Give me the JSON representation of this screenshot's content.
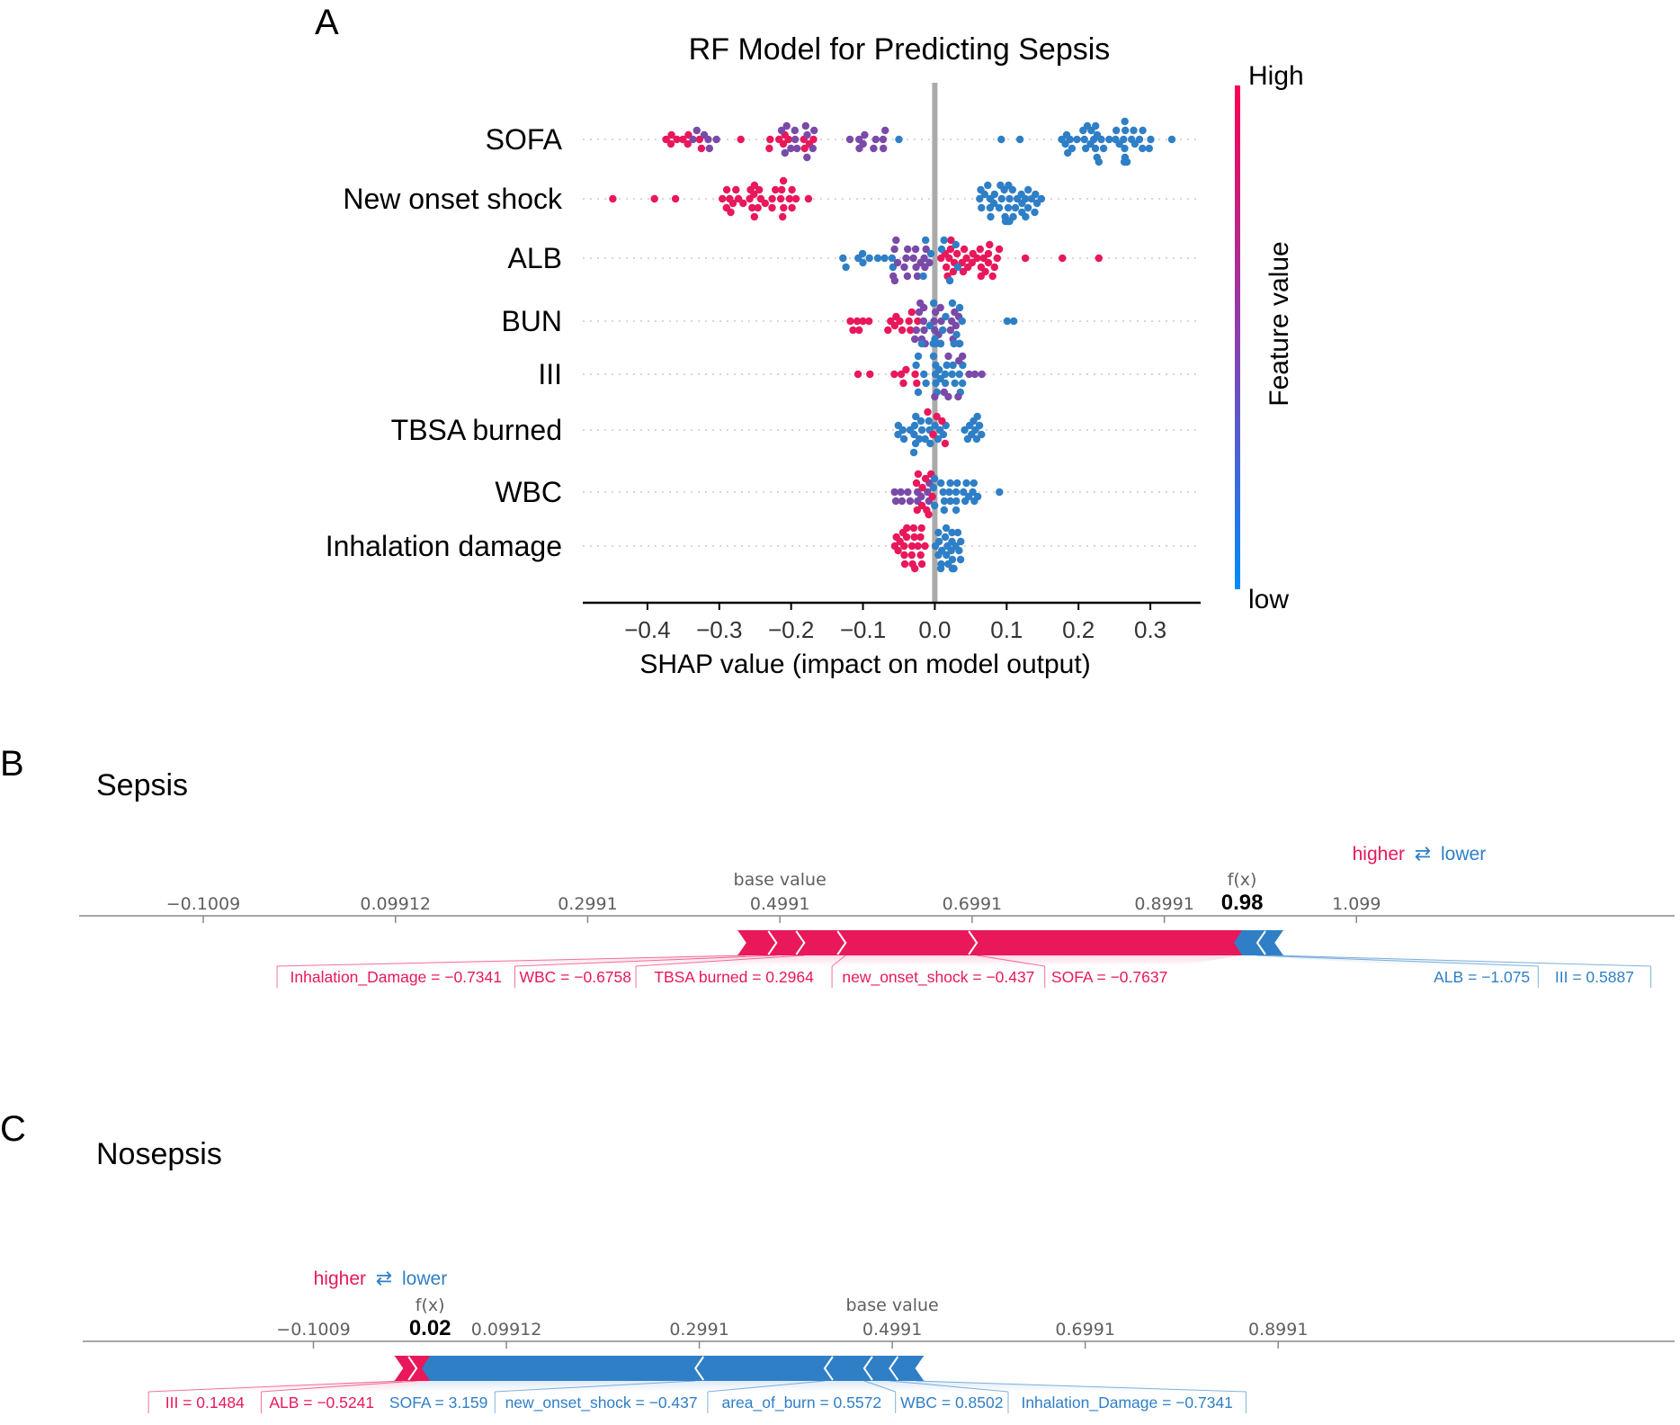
{
  "colors": {
    "red": "#e8185b",
    "blue": "#2f7fc6",
    "purple": "#7a4aa8",
    "axis": "#000000",
    "grey_zero": "#aaaaaa",
    "tick_grey": "#606060"
  },
  "chart_data": [
    {
      "panel": "A",
      "type": "scatter",
      "subtype": "shap-beeswarm",
      "title": "RF Model for Predicting Sepsis",
      "xlabel": "SHAP value (impact on model output)",
      "xlim": [
        -0.49,
        0.37
      ],
      "xticks": [
        {
          "v": -0.4,
          "label": "−0.4"
        },
        {
          "v": -0.3,
          "label": "−0.3"
        },
        {
          "v": -0.2,
          "label": "−0.2"
        },
        {
          "v": -0.1,
          "label": "−0.1"
        },
        {
          "v": 0.0,
          "label": "0.0"
        },
        {
          "v": 0.1,
          "label": "0.1"
        },
        {
          "v": 0.2,
          "label": "0.2"
        },
        {
          "v": 0.3,
          "label": "0.3"
        }
      ],
      "colorbar": {
        "label": "Feature value",
        "high": "High",
        "low": "low"
      },
      "features": [
        {
          "name": "SOFA",
          "groups": [
            {
              "c": "r",
              "range": [
                -0.38,
                -0.32
              ],
              "n": 9
            },
            {
              "c": "p",
              "range": [
                -0.34,
                -0.3
              ],
              "n": 6
            },
            {
              "c": "r",
              "range": [
                -0.27,
                -0.27
              ],
              "n": 1
            },
            {
              "c": "r",
              "range": [
                -0.24,
                -0.16
              ],
              "n": 10
            },
            {
              "c": "p",
              "range": [
                -0.22,
                -0.16
              ],
              "n": 12
            },
            {
              "c": "p",
              "range": [
                -0.12,
                -0.06
              ],
              "n": 10
            },
            {
              "c": "b",
              "range": [
                -0.05,
                -0.05
              ],
              "n": 1
            },
            {
              "c": "b",
              "range": [
                0.09,
                0.12
              ],
              "n": 2
            },
            {
              "c": "b",
              "range": [
                0.17,
                0.31
              ],
              "n": 42
            },
            {
              "c": "b",
              "range": [
                0.33,
                0.33
              ],
              "n": 1
            }
          ]
        },
        {
          "name": "New onset shock",
          "groups": [
            {
              "c": "r",
              "range": [
                -0.45,
                -0.35
              ],
              "n": 3
            },
            {
              "c": "r",
              "range": [
                -0.31,
                -0.17
              ],
              "n": 32
            },
            {
              "c": "b",
              "range": [
                0.06,
                0.15
              ],
              "n": 38
            }
          ]
        },
        {
          "name": "ALB",
          "groups": [
            {
              "c": "b",
              "range": [
                -0.14,
                -0.05
              ],
              "n": 10
            },
            {
              "c": "p",
              "range": [
                -0.07,
                0.0
              ],
              "n": 18
            },
            {
              "c": "r",
              "range": [
                0.0,
                0.1
              ],
              "n": 30
            },
            {
              "c": "r",
              "range": [
                0.12,
                0.24
              ],
              "n": 3
            },
            {
              "c": "b",
              "range": [
                -0.02,
                0.04
              ],
              "n": 8
            }
          ]
        },
        {
          "name": "BUN",
          "groups": [
            {
              "c": "r",
              "range": [
                -0.12,
                -0.09
              ],
              "n": 6
            },
            {
              "c": "r",
              "range": [
                -0.07,
                -0.02
              ],
              "n": 10
            },
            {
              "c": "p",
              "range": [
                -0.04,
                0.04
              ],
              "n": 22
            },
            {
              "c": "b",
              "range": [
                -0.02,
                0.05
              ],
              "n": 18
            },
            {
              "c": "b",
              "range": [
                0.1,
                0.11
              ],
              "n": 2
            }
          ]
        },
        {
          "name": "III",
          "groups": [
            {
              "c": "r",
              "range": [
                -0.11,
                -0.09
              ],
              "n": 2
            },
            {
              "c": "r",
              "range": [
                -0.06,
                -0.02
              ],
              "n": 6
            },
            {
              "c": "b",
              "range": [
                -0.03,
                0.05
              ],
              "n": 22
            },
            {
              "c": "p",
              "range": [
                0.0,
                0.07
              ],
              "n": 10
            }
          ]
        },
        {
          "name": "TBSA burned",
          "groups": [
            {
              "c": "b",
              "range": [
                -0.06,
                0.02
              ],
              "n": 22
            },
            {
              "c": "r",
              "range": [
                -0.01,
                0.02
              ],
              "n": 5
            },
            {
              "c": "b",
              "range": [
                0.04,
                0.07
              ],
              "n": 10
            }
          ]
        },
        {
          "name": "WBC",
          "groups": [
            {
              "c": "p",
              "range": [
                -0.06,
                0.0
              ],
              "n": 12
            },
            {
              "c": "r",
              "range": [
                -0.03,
                0.0
              ],
              "n": 10
            },
            {
              "c": "b",
              "range": [
                -0.01,
                0.07
              ],
              "n": 22
            },
            {
              "c": "b",
              "range": [
                0.09,
                0.09
              ],
              "n": 1
            }
          ]
        },
        {
          "name": "Inhalation damage",
          "groups": [
            {
              "c": "r",
              "range": [
                -0.06,
                -0.01
              ],
              "n": 22
            },
            {
              "c": "b",
              "range": [
                0.0,
                0.04
              ],
              "n": 24
            }
          ]
        }
      ]
    },
    {
      "panel": "B",
      "type": "force",
      "title": "Sepsis",
      "base_value": 0.4991,
      "base_label": "base value",
      "fx": 0.98,
      "fx_text": "0.98",
      "fx_label": "f(x)",
      "legend": {
        "higher": "higher",
        "arrows": "⇄",
        "lower": "lower"
      },
      "xlim": [
        -0.23,
        1.43
      ],
      "ticks": [
        {
          "v": -0.1009,
          "label": "−0.1009"
        },
        {
          "v": 0.09912,
          "label": "0.09912"
        },
        {
          "v": 0.2991,
          "label": "0.2991"
        },
        {
          "v": 0.4991,
          "label": "0.4991"
        },
        {
          "v": 0.6991,
          "label": "0.6991"
        },
        {
          "v": 0.8991,
          "label": "0.8991"
        },
        {
          "v": 1.099,
          "label": "1.099"
        }
      ],
      "positive": [
        {
          "label": "Inhalation_Damage = −0.7341",
          "value": 0.0325
        },
        {
          "label": "WBC = −0.6758",
          "value": 0.029
        },
        {
          "label": "TBSA burned   = 0.2964",
          "value": 0.043
        },
        {
          "label": "new_onset_shock = −0.437",
          "value": 0.1365
        },
        {
          "label": "SOFA = −0.7637",
          "value": 0.276
        }
      ],
      "negative": [
        {
          "label": "ALB = −1.075",
          "value": 0.0158
        },
        {
          "label": "III = 0.5887",
          "value": 0.0192
        }
      ]
    },
    {
      "panel": "C",
      "type": "force",
      "title": "Nosepsis",
      "base_value": 0.4991,
      "base_label": "base value",
      "fx": 0.02,
      "fx_text": "0.02",
      "fx_label": "f(x)",
      "legend": {
        "higher": "higher",
        "arrows": "⇄",
        "lower": "lower"
      },
      "xlim": [
        -0.34,
        1.31
      ],
      "ticks": [
        {
          "v": -0.1009,
          "label": "−0.1009"
        },
        {
          "v": 0.09912,
          "label": "0.09912"
        },
        {
          "v": 0.2991,
          "label": "0.2991"
        },
        {
          "v": 0.4991,
          "label": "0.4991"
        },
        {
          "v": 0.6991,
          "label": "0.6991"
        },
        {
          "v": 0.8991,
          "label": "0.8991"
        }
      ],
      "positive": [
        {
          "label": "III = 0.1484",
          "value": 0.015
        },
        {
          "label": "ALB = −0.5241",
          "value": 0.014
        }
      ],
      "negative": [
        {
          "label": "SOFA = 3.159",
          "value": 0.275
        },
        {
          "label": "new_onset_shock = −0.437",
          "value": 0.134
        },
        {
          "label": "area_of_burn = 0.5572",
          "value": 0.041
        },
        {
          "label": "WBC = 0.8502",
          "value": 0.0265
        },
        {
          "label": "Inhalation_Damage = −0.7341",
          "value": 0.0275
        }
      ]
    }
  ],
  "panel_letters": {
    "a": "A",
    "b": "B",
    "c": "C"
  }
}
